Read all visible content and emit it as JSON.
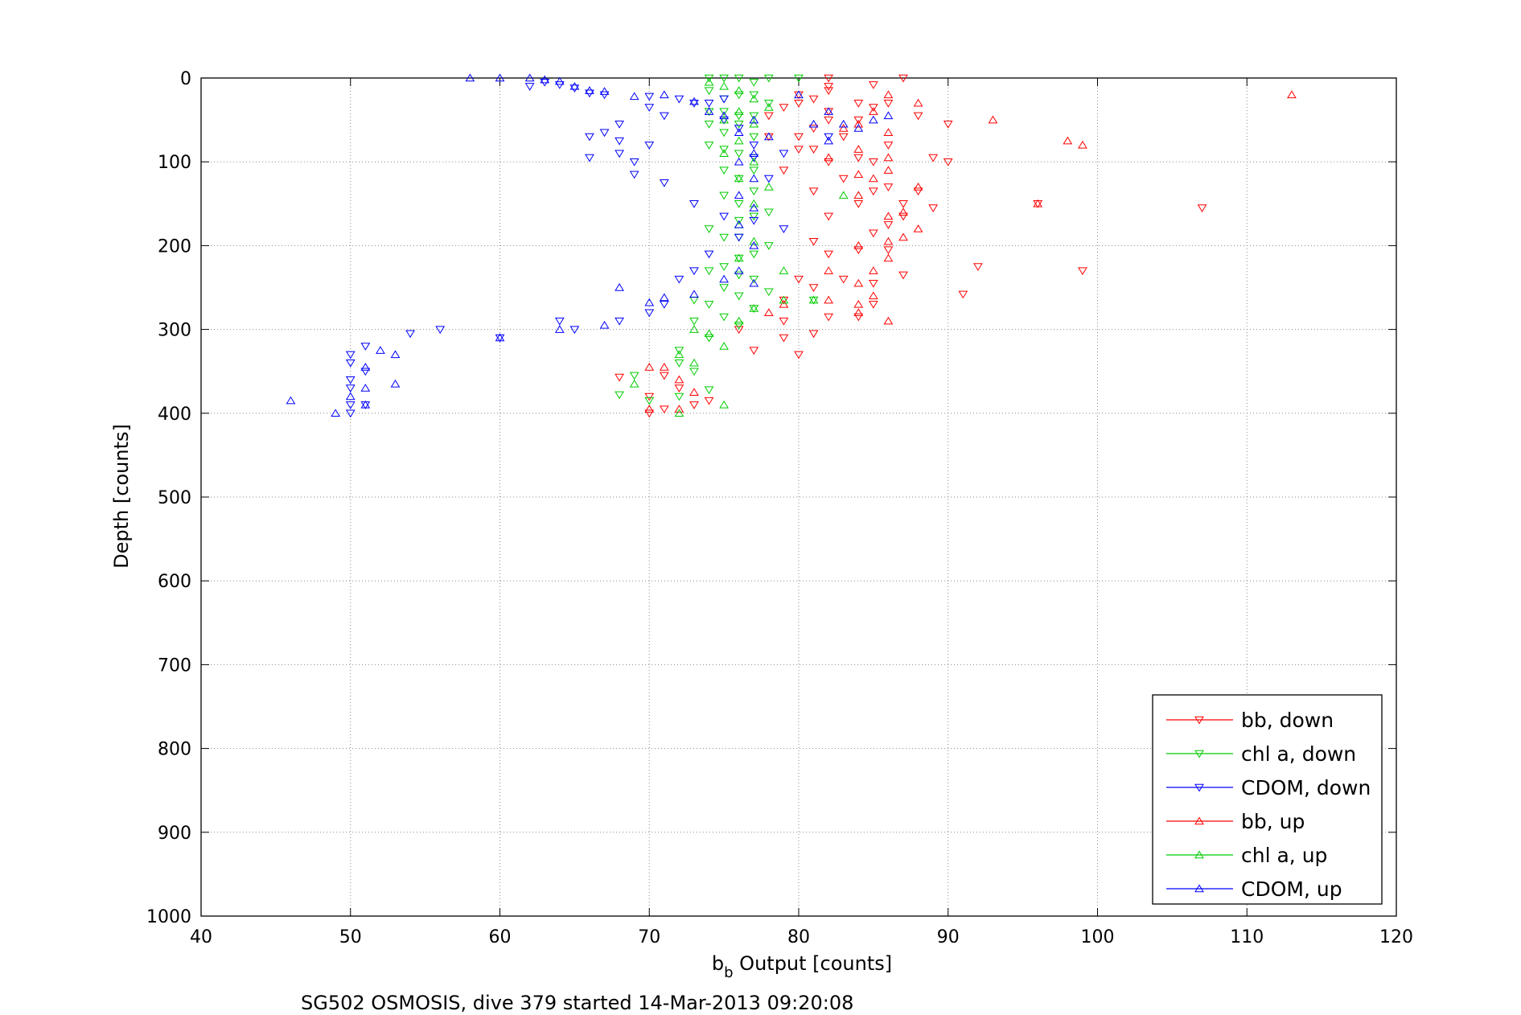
{
  "caption": "SG502 OSMOSIS, dive 379 started 14-Mar-2013 09:20:08",
  "chart_data": {
    "type": "scatter",
    "xlabel_main": "b",
    "xlabel_sub": "b",
    "xlabel_rest": " Output [counts]",
    "ylabel": "Depth [counts]",
    "xlim": [
      40,
      120
    ],
    "ylim": [
      0,
      1000
    ],
    "y_reversed": true,
    "grid": true,
    "legend_placement": "bottom-right",
    "x_ticks": [
      40,
      50,
      60,
      70,
      80,
      90,
      100,
      110,
      120
    ],
    "y_ticks": [
      0,
      100,
      200,
      300,
      400,
      500,
      600,
      700,
      800,
      900,
      1000
    ],
    "series": [
      {
        "name": "bb, down",
        "color": "#ff0000",
        "marker": "triangle-down",
        "points": [
          [
            87,
            0
          ],
          [
            82,
            0
          ],
          [
            82,
            10
          ],
          [
            85,
            8
          ],
          [
            80,
            20
          ],
          [
            82,
            15
          ],
          [
            84,
            30
          ],
          [
            86,
            30
          ],
          [
            88,
            45
          ],
          [
            85,
            35
          ],
          [
            90,
            55
          ],
          [
            84,
            50
          ],
          [
            82,
            50
          ],
          [
            81,
            60
          ],
          [
            83,
            70
          ],
          [
            86,
            80
          ],
          [
            80,
            85
          ],
          [
            84,
            95
          ],
          [
            82,
            100
          ],
          [
            85,
            100
          ],
          [
            89,
            95
          ],
          [
            90,
            100
          ],
          [
            78,
            45
          ],
          [
            80,
            30
          ],
          [
            81,
            25
          ],
          [
            82,
            40
          ],
          [
            79,
            35
          ],
          [
            80,
            70
          ],
          [
            78,
            70
          ],
          [
            81,
            85
          ],
          [
            79,
            110
          ],
          [
            83,
            120
          ],
          [
            81,
            135
          ],
          [
            85,
            135
          ],
          [
            84,
            150
          ],
          [
            86,
            130
          ],
          [
            87,
            150
          ],
          [
            88,
            135
          ],
          [
            87,
            165
          ],
          [
            89,
            155
          ],
          [
            82,
            165
          ],
          [
            86,
            175
          ],
          [
            85,
            185
          ],
          [
            82,
            210
          ],
          [
            81,
            195
          ],
          [
            84,
            205
          ],
          [
            86,
            205
          ],
          [
            87,
            235
          ],
          [
            85,
            245
          ],
          [
            83,
            240
          ],
          [
            80,
            240
          ],
          [
            79,
            265
          ],
          [
            81,
            250
          ],
          [
            85,
            270
          ],
          [
            84,
            285
          ],
          [
            82,
            285
          ],
          [
            79,
            290
          ],
          [
            81,
            305
          ],
          [
            80,
            330
          ],
          [
            79,
            310
          ],
          [
            77,
            325
          ],
          [
            76,
            300
          ],
          [
            107,
            155
          ],
          [
            99,
            230
          ],
          [
            96,
            150
          ],
          [
            92,
            225
          ],
          [
            91,
            258
          ],
          [
            68,
            357
          ],
          [
            70,
            400
          ],
          [
            71,
            395
          ],
          [
            70,
            380
          ],
          [
            73,
            390
          ],
          [
            74,
            385
          ],
          [
            72,
            370
          ],
          [
            71,
            355
          ]
        ]
      },
      {
        "name": "chl a, down",
        "color": "#00cc00",
        "marker": "triangle-down",
        "points": [
          [
            74,
            0
          ],
          [
            75,
            0
          ],
          [
            76,
            0
          ],
          [
            77,
            5
          ],
          [
            78,
            0
          ],
          [
            80,
            0
          ],
          [
            74,
            15
          ],
          [
            75,
            25
          ],
          [
            76,
            20
          ],
          [
            77,
            20
          ],
          [
            78,
            30
          ],
          [
            74,
            40
          ],
          [
            75,
            40
          ],
          [
            76,
            45
          ],
          [
            77,
            45
          ],
          [
            74,
            55
          ],
          [
            75,
            65
          ],
          [
            76,
            55
          ],
          [
            77,
            70
          ],
          [
            74,
            80
          ],
          [
            75,
            85
          ],
          [
            76,
            90
          ],
          [
            77,
            95
          ],
          [
            75,
            110
          ],
          [
            76,
            120
          ],
          [
            77,
            110
          ],
          [
            75,
            140
          ],
          [
            76,
            150
          ],
          [
            77,
            135
          ],
          [
            77,
            165
          ],
          [
            76,
            170
          ],
          [
            78,
            160
          ],
          [
            74,
            180
          ],
          [
            75,
            190
          ],
          [
            76,
            190
          ],
          [
            78,
            200
          ],
          [
            77,
            210
          ],
          [
            76,
            215
          ],
          [
            75,
            225
          ],
          [
            74,
            230
          ],
          [
            76,
            235
          ],
          [
            77,
            240
          ],
          [
            75,
            250
          ],
          [
            73,
            265
          ],
          [
            74,
            270
          ],
          [
            76,
            260
          ],
          [
            78,
            255
          ],
          [
            73,
            290
          ],
          [
            75,
            285
          ],
          [
            77,
            275
          ],
          [
            76,
            295
          ],
          [
            74,
            310
          ],
          [
            72,
            325
          ],
          [
            72,
            340
          ],
          [
            73,
            350
          ],
          [
            69,
            355
          ],
          [
            68,
            378
          ],
          [
            74,
            372
          ],
          [
            70,
            385
          ],
          [
            72,
            380
          ],
          [
            81,
            265
          ]
        ]
      },
      {
        "name": "CDOM, down",
        "color": "#0000ff",
        "marker": "triangle-down",
        "points": [
          [
            62,
            10
          ],
          [
            63,
            5
          ],
          [
            64,
            8
          ],
          [
            65,
            12
          ],
          [
            66,
            18
          ],
          [
            67,
            20
          ],
          [
            70,
            22
          ],
          [
            72,
            25
          ],
          [
            73,
            30
          ],
          [
            70,
            35
          ],
          [
            71,
            45
          ],
          [
            68,
            55
          ],
          [
            67,
            65
          ],
          [
            66,
            70
          ],
          [
            68,
            75
          ],
          [
            70,
            80
          ],
          [
            68,
            90
          ],
          [
            66,
            95
          ],
          [
            69,
            100
          ],
          [
            69,
            115
          ],
          [
            71,
            125
          ],
          [
            73,
            150
          ],
          [
            75,
            165
          ],
          [
            77,
            170
          ],
          [
            79,
            180
          ],
          [
            76,
            190
          ],
          [
            74,
            210
          ],
          [
            73,
            230
          ],
          [
            72,
            240
          ],
          [
            71,
            270
          ],
          [
            70,
            280
          ],
          [
            68,
            290
          ],
          [
            65,
            300
          ],
          [
            64,
            290
          ],
          [
            60,
            310
          ],
          [
            56,
            300
          ],
          [
            54,
            305
          ],
          [
            51,
            320
          ],
          [
            50,
            330
          ],
          [
            50,
            340
          ],
          [
            51,
            350
          ],
          [
            50,
            360
          ],
          [
            50,
            370
          ],
          [
            50,
            390
          ],
          [
            50,
            400
          ],
          [
            51,
            390
          ],
          [
            74,
            30
          ],
          [
            75,
            50
          ],
          [
            76,
            60
          ],
          [
            77,
            80
          ],
          [
            77,
            95
          ],
          [
            78,
            120
          ],
          [
            79,
            90
          ],
          [
            82,
            70
          ],
          [
            75,
            25
          ]
        ]
      },
      {
        "name": "bb, up",
        "color": "#ff0000",
        "marker": "triangle-up",
        "points": [
          [
            113,
            20
          ],
          [
            93,
            50
          ],
          [
            98,
            75
          ],
          [
            99,
            80
          ],
          [
            96,
            150
          ],
          [
            86,
            20
          ],
          [
            85,
            40
          ],
          [
            84,
            55
          ],
          [
            86,
            65
          ],
          [
            84,
            85
          ],
          [
            86,
            95
          ],
          [
            84,
            115
          ],
          [
            85,
            120
          ],
          [
            86,
            110
          ],
          [
            88,
            130
          ],
          [
            84,
            140
          ],
          [
            86,
            165
          ],
          [
            87,
            160
          ],
          [
            86,
            195
          ],
          [
            88,
            180
          ],
          [
            87,
            190
          ],
          [
            84,
            200
          ],
          [
            86,
            215
          ],
          [
            85,
            230
          ],
          [
            84,
            245
          ],
          [
            85,
            260
          ],
          [
            84,
            270
          ],
          [
            86,
            290
          ],
          [
            84,
            280
          ],
          [
            82,
            230
          ],
          [
            82,
            265
          ],
          [
            79,
            270
          ],
          [
            78,
            280
          ],
          [
            70,
            345
          ],
          [
            71,
            345
          ],
          [
            72,
            360
          ],
          [
            73,
            375
          ],
          [
            72,
            395
          ],
          [
            70,
            395
          ],
          [
            88,
            30
          ],
          [
            83,
            60
          ],
          [
            82,
            95
          ]
        ]
      },
      {
        "name": "chl a, up",
        "color": "#00cc00",
        "marker": "triangle-up",
        "points": [
          [
            74,
            5
          ],
          [
            75,
            10
          ],
          [
            76,
            15
          ],
          [
            77,
            25
          ],
          [
            78,
            35
          ],
          [
            76,
            40
          ],
          [
            75,
            50
          ],
          [
            77,
            55
          ],
          [
            76,
            75
          ],
          [
            75,
            90
          ],
          [
            77,
            100
          ],
          [
            76,
            120
          ],
          [
            78,
            130
          ],
          [
            77,
            150
          ],
          [
            76,
            175
          ],
          [
            77,
            195
          ],
          [
            76,
            215
          ],
          [
            79,
            230
          ],
          [
            79,
            265
          ],
          [
            77,
            275
          ],
          [
            76,
            290
          ],
          [
            74,
            305
          ],
          [
            75,
            320
          ],
          [
            72,
            330
          ],
          [
            73,
            340
          ],
          [
            69,
            365
          ],
          [
            72,
            400
          ],
          [
            75,
            390
          ],
          [
            83,
            140
          ],
          [
            81,
            265
          ],
          [
            73,
            300
          ]
        ]
      },
      {
        "name": "CDOM, up",
        "color": "#0000ff",
        "marker": "triangle-up",
        "points": [
          [
            58,
            0
          ],
          [
            60,
            0
          ],
          [
            62,
            0
          ],
          [
            63,
            2
          ],
          [
            64,
            4
          ],
          [
            65,
            10
          ],
          [
            66,
            15
          ],
          [
            67,
            16
          ],
          [
            69,
            22
          ],
          [
            71,
            20
          ],
          [
            73,
            28
          ],
          [
            74,
            40
          ],
          [
            75,
            45
          ],
          [
            77,
            50
          ],
          [
            76,
            65
          ],
          [
            77,
            90
          ],
          [
            76,
            100
          ],
          [
            77,
            120
          ],
          [
            76,
            140
          ],
          [
            77,
            155
          ],
          [
            76,
            175
          ],
          [
            77,
            200
          ],
          [
            76,
            230
          ],
          [
            75,
            240
          ],
          [
            77,
            245
          ],
          [
            73,
            258
          ],
          [
            71,
            262
          ],
          [
            70,
            268
          ],
          [
            68,
            250
          ],
          [
            67,
            295
          ],
          [
            64,
            300
          ],
          [
            60,
            310
          ],
          [
            53,
            330
          ],
          [
            53,
            365
          ],
          [
            52,
            325
          ],
          [
            51,
            345
          ],
          [
            51,
            370
          ],
          [
            51,
            390
          ],
          [
            50,
            380
          ],
          [
            49,
            400
          ],
          [
            46,
            385
          ],
          [
            80,
            20
          ],
          [
            81,
            55
          ],
          [
            82,
            40
          ],
          [
            83,
            55
          ],
          [
            84,
            60
          ],
          [
            86,
            45
          ],
          [
            85,
            50
          ],
          [
            82,
            75
          ],
          [
            78,
            70
          ]
        ]
      }
    ]
  }
}
